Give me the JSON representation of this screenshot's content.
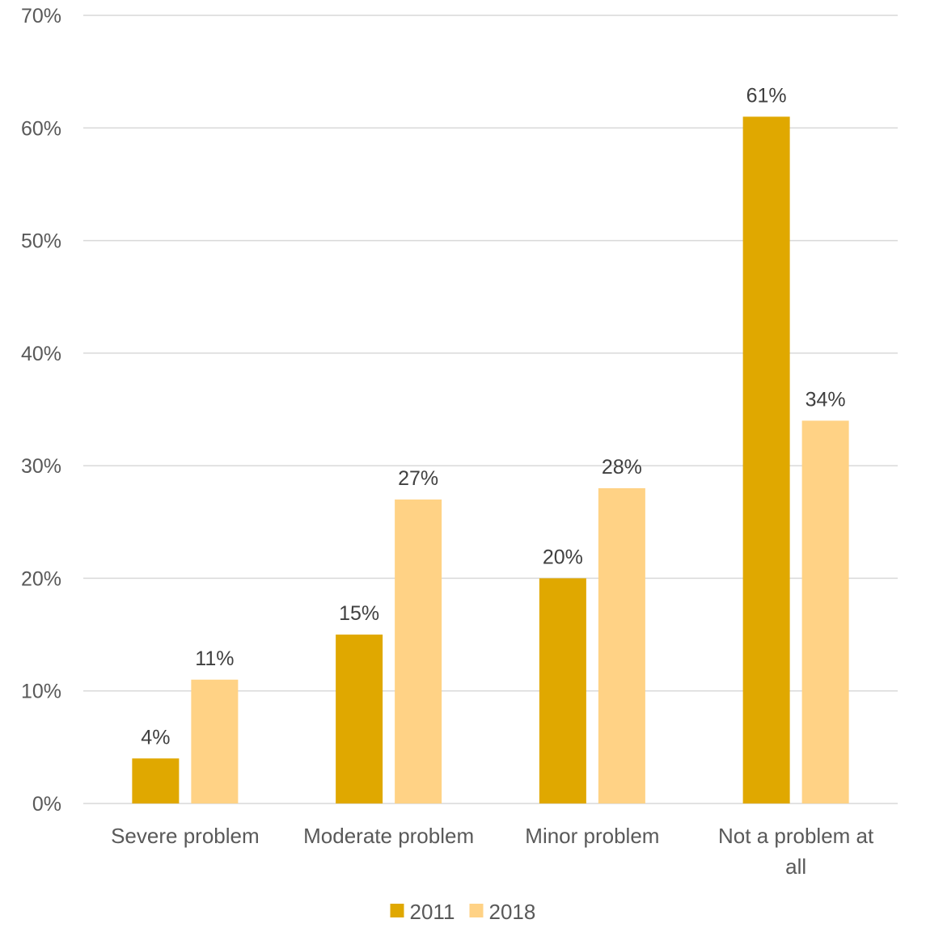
{
  "chart_data": {
    "type": "bar",
    "title": "",
    "xlabel": "",
    "ylabel": "",
    "categories": [
      [
        "Severe problem"
      ],
      [
        "Moderate problem"
      ],
      [
        "Minor problem"
      ],
      [
        "Not a problem at",
        "all"
      ]
    ],
    "series": [
      {
        "name": "2011",
        "color": "#E0A800",
        "values": [
          4,
          15,
          20,
          61
        ],
        "labels": [
          "4%",
          "15%",
          "20%",
          "61%"
        ]
      },
      {
        "name": "2018",
        "color": "#FFD285",
        "values": [
          11,
          27,
          28,
          34
        ],
        "labels": [
          "11%",
          "27%",
          "28%",
          "34%"
        ]
      }
    ],
    "ylim": [
      0,
      70
    ],
    "yticks": [
      0,
      10,
      20,
      30,
      40,
      50,
      60,
      70
    ],
    "ytick_labels": [
      "0%",
      "10%",
      "20%",
      "30%",
      "40%",
      "50%",
      "60%",
      "70%"
    ],
    "grid": true,
    "legend": "bottom-center"
  }
}
